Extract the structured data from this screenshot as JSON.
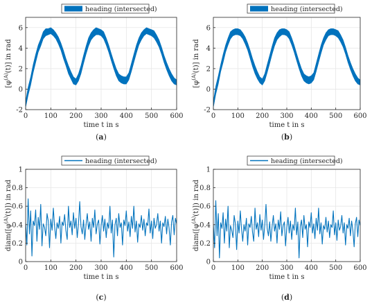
{
  "colors": {
    "series": "#0072BD",
    "grid": "#e6e6e6",
    "axis": "#262626"
  },
  "chart_data": [
    {
      "panel": "a",
      "caption": "(a)",
      "type": "area",
      "style": "band",
      "legend": {
        "label": "heading (intersected)",
        "placement": "top-center",
        "swatch": "patch"
      },
      "xlabel": "time t in s",
      "ylabel": "[φ^(A)(t)] in rad",
      "xlim": [
        0,
        600
      ],
      "ylim": [
        -2,
        7
      ],
      "xticks": [
        0,
        100,
        200,
        300,
        400,
        500,
        600
      ],
      "yticks": [
        -2,
        0,
        2,
        4,
        6
      ],
      "grid": true,
      "series": [
        {
          "name": "heading (intersected)",
          "x": [
            0,
            10,
            20,
            30,
            40,
            50,
            60,
            70,
            80,
            90,
            100,
            110,
            120,
            130,
            140,
            150,
            160,
            170,
            180,
            190,
            200,
            210,
            220,
            230,
            240,
            250,
            260,
            270,
            280,
            290,
            300,
            310,
            320,
            330,
            340,
            350,
            360,
            370,
            380,
            390,
            400,
            410,
            420,
            430,
            440,
            450,
            460,
            470,
            480,
            490,
            500,
            510,
            520,
            530,
            540,
            550,
            560,
            570,
            580,
            590,
            600
          ],
          "lower": [
            -1.8,
            -0.6,
            0.4,
            1.6,
            2.6,
            3.6,
            4.2,
            4.9,
            5.2,
            5.3,
            5.4,
            5.2,
            4.9,
            4.4,
            3.8,
            3.0,
            2.3,
            1.5,
            1.0,
            0.5,
            0.4,
            0.8,
            1.5,
            2.5,
            3.4,
            4.2,
            4.8,
            5.1,
            5.3,
            5.3,
            5.2,
            4.9,
            4.3,
            3.6,
            2.8,
            2.0,
            1.3,
            0.8,
            0.6,
            0.5,
            0.5,
            0.9,
            1.7,
            2.6,
            3.5,
            4.3,
            4.8,
            5.2,
            5.4,
            5.3,
            5.2,
            5.0,
            4.6,
            4.1,
            3.4,
            2.6,
            1.9,
            1.3,
            0.8,
            0.5,
            0.4
          ],
          "upper": [
            -1.2,
            0.2,
            1.2,
            2.4,
            3.4,
            4.3,
            4.9,
            5.6,
            5.9,
            5.9,
            6.0,
            5.8,
            5.5,
            5.1,
            4.5,
            3.8,
            3.0,
            2.3,
            1.7,
            1.2,
            1.0,
            1.5,
            2.3,
            3.3,
            4.2,
            5.0,
            5.5,
            5.8,
            6.0,
            5.9,
            5.8,
            5.6,
            5.0,
            4.3,
            3.5,
            2.7,
            2.0,
            1.5,
            1.3,
            1.2,
            1.2,
            1.6,
            2.5,
            3.4,
            4.3,
            5.0,
            5.5,
            5.8,
            6.0,
            5.9,
            5.8,
            5.7,
            5.3,
            4.8,
            4.1,
            3.3,
            2.6,
            2.0,
            1.5,
            1.1,
            0.9
          ]
        }
      ]
    },
    {
      "panel": "b",
      "caption": "(b)",
      "type": "area",
      "style": "band",
      "legend": {
        "label": "heading (intersected)",
        "placement": "top-center",
        "swatch": "patch"
      },
      "xlabel": "time t in s",
      "ylabel": "[φ^(A)(t)] in rad",
      "xlim": [
        0,
        600
      ],
      "ylim": [
        -2,
        7
      ],
      "xticks": [
        0,
        100,
        200,
        300,
        400,
        500,
        600
      ],
      "yticks": [
        -2,
        0,
        2,
        4,
        6
      ],
      "grid": true,
      "series": [
        {
          "name": "heading (intersected)",
          "x": [
            0,
            10,
            20,
            30,
            40,
            50,
            60,
            70,
            80,
            90,
            100,
            110,
            120,
            130,
            140,
            150,
            160,
            170,
            180,
            190,
            200,
            210,
            220,
            230,
            240,
            250,
            260,
            270,
            280,
            290,
            300,
            310,
            320,
            330,
            340,
            350,
            360,
            370,
            380,
            390,
            400,
            410,
            420,
            430,
            440,
            450,
            460,
            470,
            480,
            490,
            500,
            510,
            520,
            530,
            540,
            550,
            560,
            570,
            580,
            590,
            600
          ],
          "lower": [
            -1.8,
            -0.5,
            0.5,
            1.7,
            2.6,
            3.6,
            4.3,
            4.9,
            5.2,
            5.3,
            5.3,
            5.2,
            4.9,
            4.4,
            3.8,
            3.0,
            2.2,
            1.5,
            1.0,
            0.6,
            0.4,
            0.8,
            1.6,
            2.5,
            3.4,
            4.2,
            4.8,
            5.1,
            5.3,
            5.3,
            5.2,
            4.9,
            4.3,
            3.6,
            2.8,
            2.0,
            1.3,
            0.8,
            0.6,
            0.5,
            0.6,
            0.9,
            1.7,
            2.6,
            3.5,
            4.3,
            4.8,
            5.2,
            5.3,
            5.3,
            5.2,
            5.0,
            4.6,
            4.1,
            3.4,
            2.6,
            1.9,
            1.3,
            0.8,
            0.5,
            0.4
          ],
          "upper": [
            -1.2,
            0.3,
            1.3,
            2.4,
            3.4,
            4.3,
            5.0,
            5.6,
            5.8,
            5.9,
            5.9,
            5.8,
            5.5,
            5.1,
            4.5,
            3.8,
            3.0,
            2.3,
            1.7,
            1.2,
            1.0,
            1.5,
            2.4,
            3.3,
            4.2,
            5.0,
            5.5,
            5.8,
            5.9,
            5.9,
            5.8,
            5.6,
            5.0,
            4.3,
            3.5,
            2.7,
            2.0,
            1.5,
            1.3,
            1.2,
            1.3,
            1.6,
            2.5,
            3.4,
            4.3,
            5.0,
            5.5,
            5.8,
            5.9,
            5.9,
            5.8,
            5.7,
            5.3,
            4.8,
            4.1,
            3.3,
            2.6,
            2.0,
            1.5,
            1.1,
            0.9
          ]
        }
      ]
    },
    {
      "panel": "c",
      "caption": "(c)",
      "type": "line",
      "legend": {
        "label": "heading (intersected)",
        "placement": "top-center",
        "swatch": "line"
      },
      "xlabel": "time t in s",
      "ylabel": "diam([φ^(A)(t)]) in rad",
      "xlim": [
        0,
        600
      ],
      "ylim": [
        0,
        1
      ],
      "xticks": [
        0,
        100,
        200,
        300,
        400,
        500,
        600
      ],
      "yticks": [
        0,
        0.2,
        0.4,
        0.6,
        0.8,
        1
      ],
      "grid": true,
      "series": [
        {
          "name": "heading (intersected)",
          "x": [
            0,
            5,
            10,
            15,
            20,
            25,
            30,
            35,
            40,
            45,
            50,
            55,
            60,
            65,
            70,
            75,
            80,
            85,
            90,
            95,
            100,
            105,
            110,
            115,
            120,
            125,
            130,
            135,
            140,
            145,
            150,
            155,
            160,
            165,
            170,
            175,
            180,
            185,
            190,
            195,
            200,
            205,
            210,
            215,
            220,
            225,
            230,
            235,
            240,
            245,
            250,
            255,
            260,
            265,
            270,
            275,
            280,
            285,
            290,
            295,
            300,
            305,
            310,
            315,
            320,
            325,
            330,
            335,
            340,
            345,
            350,
            355,
            360,
            365,
            370,
            375,
            380,
            385,
            390,
            395,
            400,
            405,
            410,
            415,
            420,
            425,
            430,
            435,
            440,
            445,
            450,
            455,
            460,
            465,
            470,
            475,
            480,
            485,
            490,
            495,
            500,
            505,
            510,
            515,
            520,
            525,
            530,
            535,
            540,
            545,
            550,
            555,
            560,
            565,
            570,
            575,
            580,
            585,
            590,
            595,
            600
          ],
          "y": [
            0.42,
            0.18,
            0.68,
            0.3,
            0.55,
            0.06,
            0.44,
            0.39,
            0.56,
            0.22,
            0.48,
            0.35,
            0.62,
            0.17,
            0.41,
            0.37,
            0.28,
            0.52,
            0.44,
            0.15,
            0.46,
            0.34,
            0.58,
            0.38,
            0.25,
            0.42,
            0.36,
            0.49,
            0.2,
            0.43,
            0.39,
            0.51,
            0.34,
            0.24,
            0.6,
            0.37,
            0.44,
            0.29,
            0.53,
            0.36,
            0.47,
            0.26,
            0.41,
            0.65,
            0.38,
            0.3,
            0.45,
            0.24,
            0.4,
            0.52,
            0.35,
            0.43,
            0.22,
            0.47,
            0.37,
            0.56,
            0.3,
            0.41,
            0.45,
            0.19,
            0.39,
            0.5,
            0.33,
            0.46,
            0.26,
            0.42,
            0.36,
            0.6,
            0.31,
            0.45,
            0.05,
            0.4,
            0.47,
            0.28,
            0.52,
            0.37,
            0.42,
            0.18,
            0.45,
            0.39,
            0.55,
            0.33,
            0.43,
            0.27,
            0.49,
            0.36,
            0.6,
            0.32,
            0.44,
            0.21,
            0.41,
            0.37,
            0.5,
            0.34,
            0.46,
            0.28,
            0.42,
            0.39,
            0.57,
            0.31,
            0.44,
            0.25,
            0.47,
            0.36,
            0.4,
            0.52,
            0.33,
            0.44,
            0.2,
            0.42,
            0.38,
            0.49,
            0.3,
            0.46,
            0.36,
            0.18,
            0.43,
            0.5,
            0.29,
            0.47,
            0.41
          ]
        }
      ]
    },
    {
      "panel": "d",
      "caption": "(d)",
      "type": "line",
      "legend": {
        "label": "heading (intersected)",
        "placement": "top-center",
        "swatch": "line"
      },
      "xlabel": "time t in s",
      "ylabel": "diam([φ^(A)(t)]) in rad",
      "xlim": [
        0,
        600
      ],
      "ylim": [
        0,
        1
      ],
      "xticks": [
        0,
        100,
        200,
        300,
        400,
        500,
        600
      ],
      "yticks": [
        0,
        0.2,
        0.4,
        0.6,
        0.8,
        1
      ],
      "grid": true,
      "series": [
        {
          "name": "heading (intersected)",
          "x": [
            0,
            5,
            10,
            15,
            20,
            25,
            30,
            35,
            40,
            45,
            50,
            55,
            60,
            65,
            70,
            75,
            80,
            85,
            90,
            95,
            100,
            105,
            110,
            115,
            120,
            125,
            130,
            135,
            140,
            145,
            150,
            155,
            160,
            165,
            170,
            175,
            180,
            185,
            190,
            195,
            200,
            205,
            210,
            215,
            220,
            225,
            230,
            235,
            240,
            245,
            250,
            255,
            260,
            265,
            270,
            275,
            280,
            285,
            290,
            295,
            300,
            305,
            310,
            315,
            320,
            325,
            330,
            335,
            340,
            345,
            350,
            355,
            360,
            365,
            370,
            375,
            380,
            385,
            390,
            395,
            400,
            405,
            410,
            415,
            420,
            425,
            430,
            435,
            440,
            445,
            450,
            455,
            460,
            465,
            470,
            475,
            480,
            485,
            490,
            495,
            500,
            505,
            510,
            515,
            520,
            525,
            530,
            535,
            540,
            545,
            550,
            555,
            560,
            565,
            570,
            575,
            580,
            585,
            590,
            595,
            600
          ],
          "y": [
            0.4,
            0.15,
            0.66,
            0.28,
            0.52,
            0.04,
            0.42,
            0.36,
            0.53,
            0.2,
            0.46,
            0.33,
            0.6,
            0.15,
            0.39,
            0.34,
            0.26,
            0.5,
            0.41,
            0.13,
            0.44,
            0.31,
            0.55,
            0.36,
            0.22,
            0.4,
            0.33,
            0.47,
            0.18,
            0.41,
            0.37,
            0.49,
            0.32,
            0.22,
            0.58,
            0.35,
            0.42,
            0.27,
            0.51,
            0.34,
            0.45,
            0.24,
            0.39,
            0.62,
            0.36,
            0.28,
            0.43,
            0.22,
            0.38,
            0.5,
            0.33,
            0.41,
            0.2,
            0.45,
            0.35,
            0.54,
            0.28,
            0.39,
            0.43,
            0.17,
            0.37,
            0.48,
            0.31,
            0.44,
            0.24,
            0.4,
            0.34,
            0.58,
            0.29,
            0.43,
            0.04,
            0.38,
            0.45,
            0.26,
            0.5,
            0.35,
            0.4,
            0.16,
            0.43,
            0.37,
            0.53,
            0.31,
            0.41,
            0.25,
            0.47,
            0.34,
            0.58,
            0.3,
            0.42,
            0.19,
            0.39,
            0.35,
            0.48,
            0.32,
            0.44,
            0.26,
            0.4,
            0.37,
            0.55,
            0.29,
            0.42,
            0.23,
            0.45,
            0.34,
            0.38,
            0.5,
            0.31,
            0.42,
            0.18,
            0.4,
            0.36,
            0.47,
            0.28,
            0.44,
            0.34,
            0.16,
            0.41,
            0.48,
            0.27,
            0.45,
            0.39
          ]
        }
      ]
    }
  ]
}
